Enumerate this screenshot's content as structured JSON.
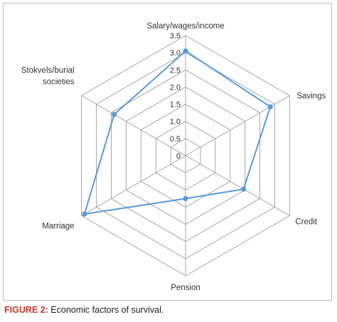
{
  "chart_data": {
    "type": "radar",
    "categories": [
      "Salary/wages/income",
      "Savings",
      "Credit",
      "Pension",
      "Marriage",
      "Stokvels/burial societies"
    ],
    "category_lines": [
      [
        "Salary/wages/income"
      ],
      [
        "Savings"
      ],
      [
        "Credit"
      ],
      [
        "Pension"
      ],
      [
        "Marriage"
      ],
      [
        "Stokvels/burial",
        "societies"
      ]
    ],
    "series": [
      {
        "values": [
          3.05,
          2.85,
          1.95,
          1.25,
          3.4,
          2.4
        ],
        "color": "#5b9bd5"
      }
    ],
    "r_ticks": [
      "0",
      "0.5",
      "1.0",
      "1.5",
      "2.0",
      "2.5",
      "3.0",
      "3.5"
    ],
    "r_range": [
      0,
      3.5
    ],
    "grid": true,
    "grid_color": "#a6a6a6"
  },
  "caption": {
    "figure_label": "FIGURE 2:",
    "text": " Economic factors of survival."
  }
}
